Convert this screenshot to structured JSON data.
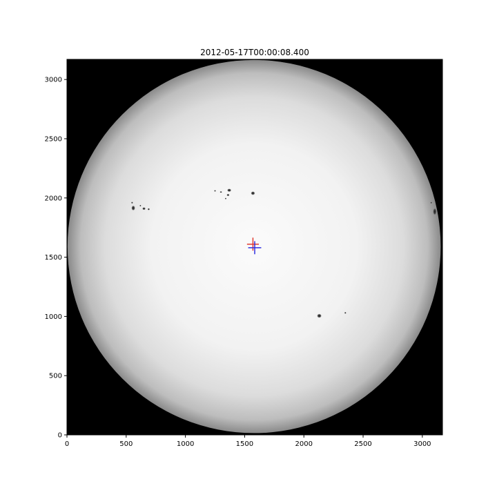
{
  "figure": {
    "title": "2012-05-17T00:00:08.400"
  },
  "chart_data": {
    "type": "image",
    "title": "2012-05-17T00:00:08.400",
    "xlabel": "",
    "ylabel": "",
    "xlim": [
      0,
      3170
    ],
    "ylim": [
      0,
      3170
    ],
    "xticks": [
      0,
      500,
      1000,
      1500,
      2000,
      2500,
      3000
    ],
    "yticks": [
      0,
      500,
      1000,
      1500,
      2000,
      2500,
      3000
    ],
    "grid": false,
    "disk": {
      "center": [
        1580,
        1590
      ],
      "radius": 1575
    },
    "markers": [
      {
        "name": "red-crosshair",
        "color": "#e03a2f",
        "x": 1570,
        "y": 1610,
        "half_x": 50,
        "half_y": 55
      },
      {
        "name": "blue-crosshair",
        "color": "#2f2fe0",
        "x": 1585,
        "y": 1580,
        "half_x": 55,
        "half_y": 55
      }
    ],
    "spots": [
      {
        "x": 560,
        "y": 1915,
        "rx": 16,
        "ry": 22
      },
      {
        "x": 550,
        "y": 1960,
        "rx": 8,
        "ry": 8
      },
      {
        "x": 650,
        "y": 1910,
        "rx": 14,
        "ry": 12
      },
      {
        "x": 690,
        "y": 1905,
        "rx": 9,
        "ry": 9
      },
      {
        "x": 620,
        "y": 1935,
        "rx": 6,
        "ry": 6
      },
      {
        "x": 1370,
        "y": 2065,
        "rx": 18,
        "ry": 14
      },
      {
        "x": 1360,
        "y": 2025,
        "rx": 12,
        "ry": 10
      },
      {
        "x": 1300,
        "y": 2050,
        "rx": 10,
        "ry": 6
      },
      {
        "x": 1250,
        "y": 2060,
        "rx": 8,
        "ry": 6
      },
      {
        "x": 1340,
        "y": 1995,
        "rx": 6,
        "ry": 6
      },
      {
        "x": 1570,
        "y": 2040,
        "rx": 18,
        "ry": 16
      },
      {
        "x": 2130,
        "y": 1005,
        "rx": 20,
        "ry": 18
      },
      {
        "x": 2350,
        "y": 1030,
        "rx": 8,
        "ry": 8
      },
      {
        "x": 3105,
        "y": 1885,
        "rx": 16,
        "ry": 32
      },
      {
        "x": 3075,
        "y": 1960,
        "rx": 6,
        "ry": 8
      }
    ],
    "colors": {
      "background": "#000000",
      "disk_center": "#fafafa",
      "disk_limb": "#8a8a8a",
      "spot": "#2a2a2a"
    }
  }
}
